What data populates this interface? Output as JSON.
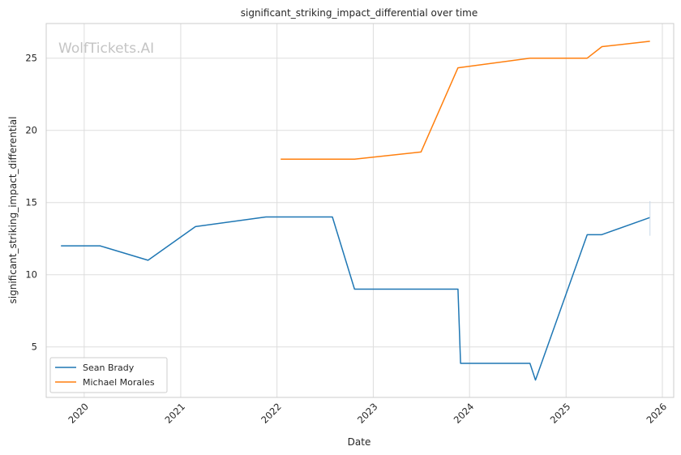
{
  "chart_data": {
    "type": "line",
    "title": "significant_striking_impact_differential over time",
    "xlabel": "Date",
    "ylabel": "significant_striking_impact_differential",
    "watermark": "WolfTickets.AI",
    "x_ticks": [
      "2020",
      "2021",
      "2022",
      "2023",
      "2024",
      "2025",
      "2026"
    ],
    "y_ticks": [
      5,
      10,
      15,
      20,
      25
    ],
    "xlim": [
      "2019-08-10",
      "2026-02-13"
    ],
    "ylim": [
      1.5,
      27.4
    ],
    "grid": true,
    "legend_position": "lower-left",
    "series": [
      {
        "name": "Sean Brady",
        "color": "#1f77b4",
        "points": [
          {
            "x": "2019-10-05",
            "y": 12.0
          },
          {
            "x": "2020-03-01",
            "y": 12.0
          },
          {
            "x": "2020-08-30",
            "y": 11.0
          },
          {
            "x": "2021-02-26",
            "y": 13.33
          },
          {
            "x": "2021-11-20",
            "y": 14.0
          },
          {
            "x": "2022-07-30",
            "y": 14.0
          },
          {
            "x": "2022-10-22",
            "y": 9.0
          },
          {
            "x": "2023-11-18",
            "y": 9.0
          },
          {
            "x": "2023-11-28",
            "y": 3.86
          },
          {
            "x": "2024-08-17",
            "y": 3.86
          },
          {
            "x": "2024-09-07",
            "y": 2.7
          },
          {
            "x": "2025-03-22",
            "y": 12.77
          },
          {
            "x": "2025-05-15",
            "y": 12.77
          },
          {
            "x": "2025-11-15",
            "y": 13.96
          }
        ]
      },
      {
        "name": "Michael Morales",
        "color": "#ff7f0e",
        "points": [
          {
            "x": "2022-01-15",
            "y": 18.0
          },
          {
            "x": "2022-10-22",
            "y": 18.0
          },
          {
            "x": "2023-07-01",
            "y": 18.5
          },
          {
            "x": "2023-11-18",
            "y": 24.33
          },
          {
            "x": "2024-08-17",
            "y": 25.0
          },
          {
            "x": "2025-03-22",
            "y": 25.0
          },
          {
            "x": "2025-05-17",
            "y": 25.8
          },
          {
            "x": "2025-11-15",
            "y": 26.17
          }
        ]
      }
    ]
  }
}
